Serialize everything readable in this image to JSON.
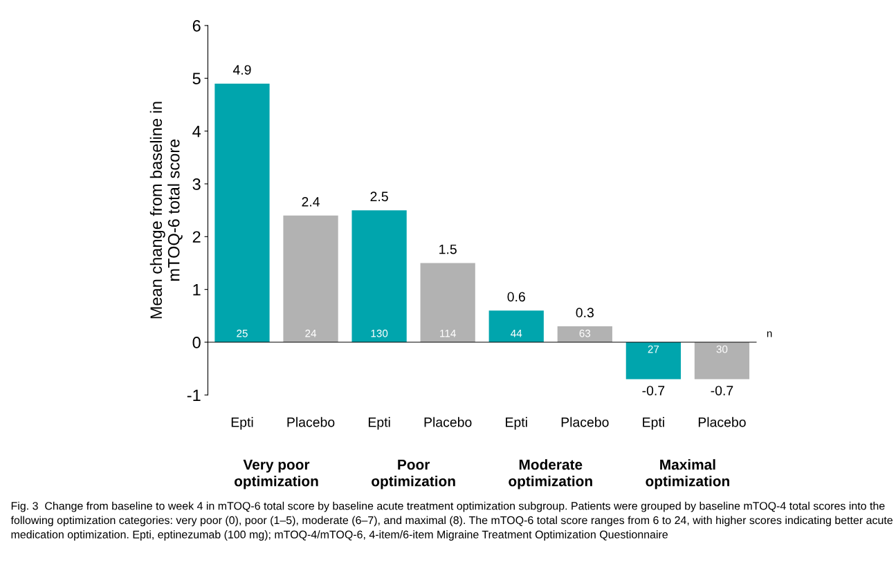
{
  "chart_data": {
    "type": "bar",
    "ylabel": "Mean change from baseline in\nmTOQ-6 total score",
    "categories": [
      "Epti",
      "Placebo",
      "Epti",
      "Placebo",
      "Epti",
      "Placebo",
      "Epti",
      "Placebo"
    ],
    "values": [
      4.9,
      2.4,
      2.5,
      1.5,
      0.6,
      0.3,
      -0.7,
      -0.7
    ],
    "colors": [
      "#00a5ad",
      "#b2b2b2",
      "#00a5ad",
      "#b2b2b2",
      "#00a5ad",
      "#b2b2b2",
      "#00a5ad",
      "#b2b2b2"
    ],
    "data_labels": true,
    "ylim": [
      -1,
      6
    ],
    "yticks": [
      -1,
      0,
      1,
      2,
      3,
      4,
      5,
      6
    ],
    "legend": false,
    "annotations": [
      "25",
      "24",
      "130",
      "114",
      "44",
      "63",
      "27",
      "30",
      "n",
      "Very poor\noptimization",
      "Poor\noptimization",
      "Moderate\noptimization",
      "Maximal\noptimization",
      "Fig. 3  Change from baseline to week 4 in mTOQ-6 total score by baseline acute treatment optimization subgroup. Patients were grouped by baseline mTOQ-4 total scores into the following optimization categories: very poor (0), poor (1–5), moderate (6–7), and maximal (8). The mTOQ-6 total score ranges from 6 to 24, with higher scores indicating better acute medication optimization. Epti, eptinezumab (100 mg); mTOQ-4/mTOQ-6, 4-item/6-item Migraine Treatment Optimization Questionnaire"
    ]
  }
}
